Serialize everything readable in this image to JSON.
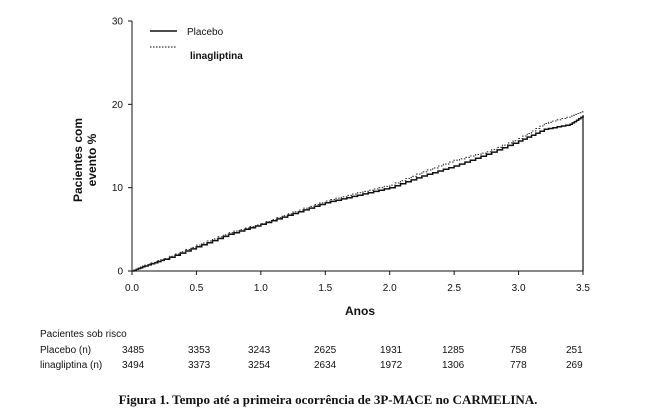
{
  "chart_data": {
    "type": "line",
    "xlabel": "Anos",
    "ylabel_line1": "Pacientes com",
    "ylabel_line2": "evento %",
    "xlim": [
      0,
      3.5
    ],
    "ylim": [
      0,
      30
    ],
    "x_ticks": [
      "0.0",
      "0.5",
      "1.0",
      "1.5",
      "2.0",
      "2.5",
      "3.0",
      "3.5"
    ],
    "y_ticks": [
      "0",
      "10",
      "20",
      "30"
    ],
    "grid": false,
    "legend_position": "top-left",
    "series": [
      {
        "name": "Placebo",
        "style": "solid",
        "color": "#111111",
        "x": [
          0,
          0.1,
          0.25,
          0.5,
          0.75,
          1.0,
          1.25,
          1.5,
          1.75,
          2.0,
          2.25,
          2.5,
          2.75,
          3.0,
          3.2,
          3.4,
          3.5
        ],
        "y": [
          0,
          0.6,
          1.4,
          2.9,
          4.4,
          5.6,
          6.9,
          8.2,
          9.1,
          10.0,
          11.4,
          12.6,
          14.0,
          15.6,
          17.0,
          17.6,
          18.6
        ]
      },
      {
        "name": "linagliptina",
        "style": "dotted",
        "color": "#333333",
        "x": [
          0,
          0.1,
          0.25,
          0.5,
          0.75,
          1.0,
          1.25,
          1.5,
          1.75,
          2.0,
          2.25,
          2.5,
          2.75,
          3.0,
          3.2,
          3.4,
          3.5
        ],
        "y": [
          0,
          0.7,
          1.5,
          3.1,
          4.6,
          5.7,
          7.1,
          8.4,
          9.4,
          10.3,
          11.9,
          13.3,
          14.3,
          15.9,
          17.7,
          18.6,
          19.2
        ]
      }
    ]
  },
  "risk_table": {
    "title": "Pacientes sob risco",
    "rows": [
      {
        "label": "Placebo (n)",
        "values": [
          "3485",
          "3353",
          "3243",
          "2625",
          "1931",
          "1285",
          "758",
          "251"
        ]
      },
      {
        "label": "linagliptina (n)",
        "values": [
          "3494",
          "3373",
          "3254",
          "2634",
          "1972",
          "1306",
          "778",
          "269"
        ]
      }
    ]
  },
  "caption": "Figura 1. Tempo até a primeira ocorrência de 3P-MACE no CARMELINA."
}
